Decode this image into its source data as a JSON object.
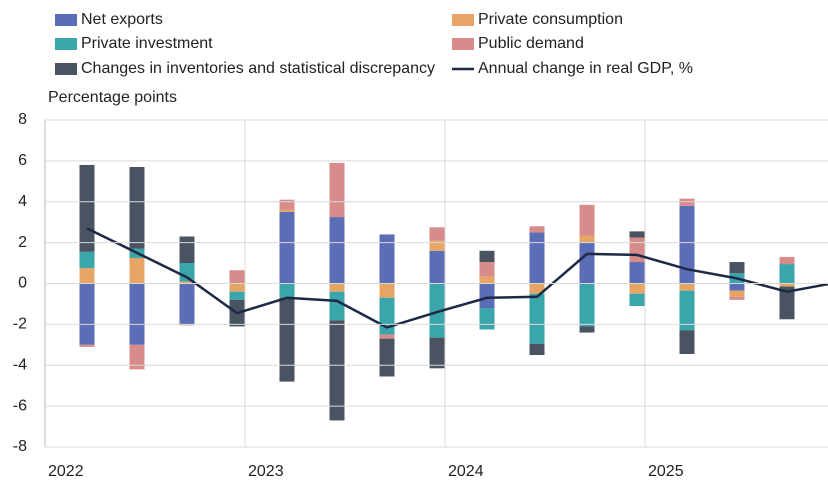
{
  "chart_data": {
    "type": "stacked_bar_line",
    "y_label": "Percentage points",
    "categories": [
      "2022",
      null,
      null,
      null,
      "2023",
      null,
      null,
      null,
      "2024",
      null,
      null,
      null,
      "2025",
      null,
      null,
      null
    ],
    "series": [
      {
        "name": "Net exports",
        "color": "#5b6db5",
        "values": [
          -3.0,
          -3.0,
          -2.0,
          0,
          3.5,
          3.25,
          2.4,
          1.6,
          -1.2,
          2.5,
          2.0,
          1.05,
          3.8,
          -0.35,
          0,
          0
        ]
      },
      {
        "name": "Private consumption",
        "color": "#e6a565",
        "values": [
          0.75,
          1.25,
          0.1,
          -0.4,
          0.1,
          -0.4,
          -0.7,
          0.5,
          0.35,
          -0.5,
          0.35,
          -0.5,
          -0.35,
          -0.3,
          -0.15,
          -0.4
        ]
      },
      {
        "name": "Private investment",
        "color": "#3aa5aa",
        "values": [
          0.8,
          0.45,
          0.9,
          -0.4,
          -0.7,
          -1.4,
          -1.8,
          -2.65,
          -1.05,
          -2.45,
          -2.1,
          -0.6,
          -1.95,
          0.5,
          0.95,
          1.3
        ]
      },
      {
        "name": "Public demand",
        "color": "#d88b8b",
        "values": [
          -0.1,
          -1.2,
          -0.05,
          0.65,
          0.5,
          2.65,
          -0.2,
          0.65,
          0.7,
          0.3,
          1.5,
          1.2,
          0.35,
          -0.15,
          0.35,
          -0.35
        ]
      },
      {
        "name": "Changes in inventories and statistical discrepancy",
        "color": "#4a5361",
        "values": [
          4.25,
          4.0,
          1.3,
          -1.3,
          -4.1,
          -4.9,
          -1.85,
          -1.5,
          0.55,
          -0.55,
          -0.3,
          0.3,
          -1.15,
          0.55,
          -1.6,
          -0.45
        ]
      },
      {
        "name": "Annual change in real GDP, %",
        "color": "#1e2a45",
        "type": "line",
        "values": [
          2.7,
          1.5,
          0.3,
          -1.45,
          -0.7,
          -0.85,
          -2.15,
          -1.4,
          -0.7,
          -0.65,
          1.45,
          1.4,
          0.7,
          0.25,
          -0.4,
          0.05
        ]
      }
    ],
    "ylim": [
      -8,
      8
    ],
    "yticks": [
      -8,
      -6,
      -4,
      -2,
      0,
      2,
      4,
      6,
      8
    ],
    "grid": true
  }
}
